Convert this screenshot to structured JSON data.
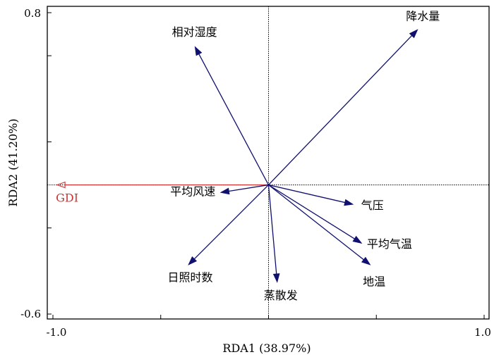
{
  "chart_data": {
    "type": "scatter",
    "subtype": "rda-biplot",
    "xlabel": "RDA1 (38.97%)",
    "ylabel": "RDA2 (41.20%)",
    "xlim": [
      -1.0,
      1.0
    ],
    "ylim": [
      -0.6,
      0.8
    ],
    "x_ticks": [
      "-1.0",
      "1.0"
    ],
    "y_ticks": [
      "0.8",
      "-0.6"
    ],
    "grid": false,
    "colors": {
      "response": "#d04040",
      "explanatory": "#10106e",
      "axes": "#000000"
    },
    "response": [
      {
        "label": "GDI",
        "x": -0.98,
        "y": 0.0
      }
    ],
    "explanatory": [
      {
        "label": "降水量",
        "x": 0.69,
        "y": 0.72
      },
      {
        "label": "相对湿度",
        "x": -0.34,
        "y": 0.64
      },
      {
        "label": "平均风速",
        "x": -0.22,
        "y": -0.035
      },
      {
        "label": "气压",
        "x": 0.39,
        "y": -0.09
      },
      {
        "label": "平均气温",
        "x": 0.43,
        "y": -0.27
      },
      {
        "label": "地温",
        "x": 0.47,
        "y": -0.37
      },
      {
        "label": "日照时数",
        "x": -0.37,
        "y": -0.37
      },
      {
        "label": "蒸散发",
        "x": 0.04,
        "y": -0.45
      }
    ]
  }
}
